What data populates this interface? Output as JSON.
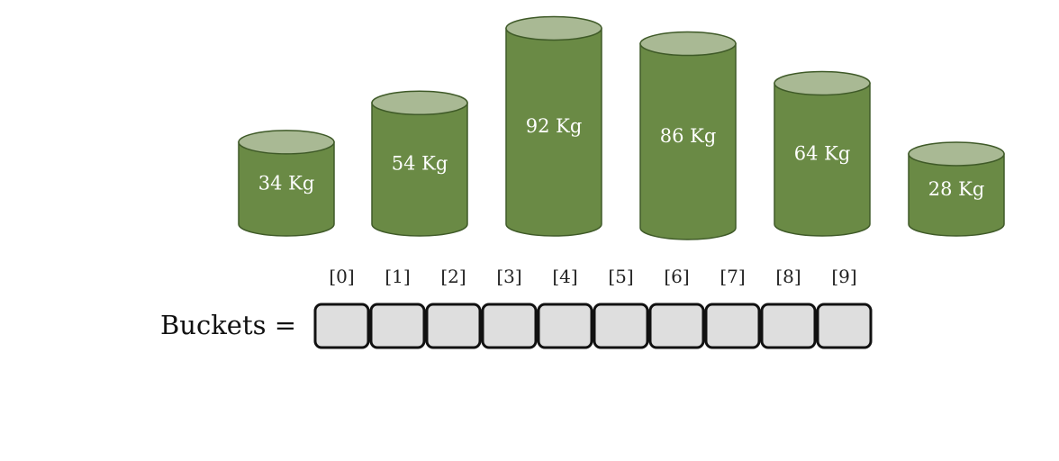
{
  "cylinders": [
    {
      "label": "34 Kg",
      "weight": 34
    },
    {
      "label": "54 Kg",
      "weight": 54
    },
    {
      "label": "92 Kg",
      "weight": 92
    },
    {
      "label": "86 Kg",
      "weight": 86
    },
    {
      "label": "64 Kg",
      "weight": 64
    },
    {
      "label": "28 Kg",
      "weight": 28
    }
  ],
  "buckets": {
    "label": "Buckets =",
    "indices": [
      "[0]",
      "[1]",
      "[2]",
      "[3]",
      "[4]",
      "[5]",
      "[6]",
      "[7]",
      "[8]",
      "[9]"
    ]
  },
  "colors": {
    "cylinder_body": "#6a8a45",
    "cylinder_top": "#a9b994",
    "cylinder_stroke": "#3f5a28",
    "bucket_fill": "#dedede",
    "bucket_stroke": "#111111"
  }
}
